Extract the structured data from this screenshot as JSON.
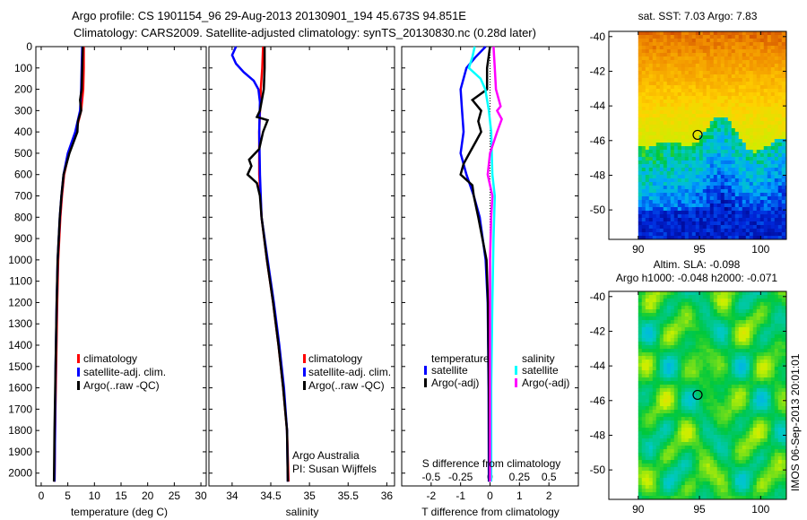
{
  "title": {
    "line1": "Argo profile: CS 1901154_96 29-Aug-2013 20130901_194 45.673S 94.851E",
    "line2": "Climatology: CARS2009. Satellite-adjusted climatology: synTS_20130830.nc (0.28d later)"
  },
  "colors": {
    "climatology": "#ff0000",
    "satellite": "#0000ff",
    "argo": "#000000",
    "sal_satellite": "#00ffff",
    "sal_argo": "#ff00ff"
  },
  "chart_data": [
    {
      "type": "line",
      "name": "temperature",
      "xlabel": "temperature (deg C)",
      "xlim": [
        -1,
        31
      ],
      "ylim": [
        2060,
        0
      ],
      "xticks": [
        0,
        5,
        10,
        15,
        20,
        25,
        30
      ],
      "yticks": [
        0,
        100,
        200,
        300,
        400,
        500,
        600,
        700,
        800,
        900,
        1000,
        1100,
        1200,
        1300,
        1400,
        1500,
        1600,
        1700,
        1800,
        1900,
        2000
      ],
      "legend": [
        "climatology",
        "satellite-adj. clim.",
        "Argo(..raw -QC)"
      ],
      "series": [
        {
          "name": "climatology",
          "color": "#ff0000",
          "depth": [
            0,
            100,
            200,
            300,
            400,
            500,
            600,
            700,
            800,
            1000,
            1200,
            1500,
            1800,
            2040
          ],
          "values": [
            8.0,
            8.0,
            7.9,
            7.5,
            6.5,
            5.2,
            4.3,
            3.9,
            3.6,
            3.2,
            3.0,
            2.8,
            2.6,
            2.5
          ]
        },
        {
          "name": "satellite-adj. clim.",
          "color": "#0000ff",
          "depth": [
            0,
            100,
            200,
            300,
            400,
            500,
            600,
            700,
            800,
            1000,
            1200,
            1500,
            1800,
            2040
          ],
          "values": [
            7.7,
            7.6,
            7.5,
            7.3,
            6.4,
            5.0,
            4.2,
            3.8,
            3.5,
            3.1,
            2.9,
            2.7,
            2.6,
            2.5
          ]
        },
        {
          "name": "Argo(..raw -QC)",
          "color": "#000000",
          "depth": [
            0,
            100,
            200,
            250,
            300,
            350,
            400,
            500,
            600,
            700,
            800,
            1000,
            1200,
            1500,
            1800,
            2040
          ],
          "values": [
            7.8,
            7.7,
            7.6,
            7.3,
            7.5,
            6.9,
            6.8,
            5.3,
            4.2,
            3.8,
            3.5,
            3.1,
            2.9,
            2.7,
            2.5,
            2.4
          ]
        }
      ]
    },
    {
      "type": "line",
      "name": "salinity",
      "xlabel": "salinity",
      "xlim": [
        33.7,
        36.1
      ],
      "ylim": [
        2060,
        0
      ],
      "xticks": [
        34,
        34.5,
        35,
        35.5,
        36
      ],
      "legend": [
        "climatology",
        "satellite-adj. clim.",
        "Argo(..raw -QC)"
      ],
      "annotation": [
        "Argo Australia",
        "PI: Susan Wijffels"
      ],
      "series": [
        {
          "name": "climatology",
          "color": "#ff0000",
          "depth": [
            0,
            100,
            200,
            400,
            600,
            800,
            1000,
            1200,
            1400,
            1600,
            1800,
            2040
          ],
          "values": [
            34.4,
            34.39,
            34.37,
            34.35,
            34.35,
            34.38,
            34.45,
            34.53,
            34.6,
            34.66,
            34.71,
            34.73
          ]
        },
        {
          "name": "satellite-adj. clim.",
          "color": "#0000ff",
          "depth": [
            0,
            40,
            80,
            120,
            160,
            200,
            260,
            400,
            600,
            800,
            1000,
            1200,
            1400,
            1600,
            1800,
            2040
          ],
          "values": [
            34.05,
            34.0,
            34.05,
            34.15,
            34.28,
            34.34,
            34.36,
            34.35,
            34.36,
            34.38,
            34.46,
            34.54,
            34.61,
            34.67,
            34.71,
            34.72
          ]
        },
        {
          "name": "Argo(..raw -QC)",
          "color": "#000000",
          "depth": [
            0,
            100,
            200,
            300,
            330,
            345,
            400,
            480,
            530,
            560,
            600,
            640,
            700,
            800,
            1000,
            1200,
            1400,
            1600,
            1800,
            2040
          ],
          "values": [
            34.42,
            34.42,
            34.41,
            34.36,
            34.32,
            34.46,
            34.4,
            34.35,
            34.22,
            34.25,
            34.2,
            34.32,
            34.36,
            34.38,
            34.45,
            34.53,
            34.6,
            34.66,
            34.71,
            34.72
          ]
        }
      ]
    },
    {
      "type": "line",
      "name": "difference",
      "xlabel": "T difference from climatology",
      "x2label": "S difference from climatology",
      "xlim": [
        -3,
        3
      ],
      "x2lim": [
        -0.75,
        0.75
      ],
      "ylim": [
        2060,
        0
      ],
      "xticks": [
        -2,
        -1,
        0,
        1,
        2
      ],
      "x2ticks": [
        -0.5,
        -0.25,
        0,
        0.25,
        0.5
      ],
      "legend": {
        "temperature_header": "temperature",
        "salinity_header": "salinity",
        "t_satellite": "satellite",
        "t_argo": "Argo(-adj)",
        "s_satellite": "satellite",
        "s_argo": "Argo(-adj)"
      },
      "series": [
        {
          "name": "T satellite",
          "axis": "T",
          "color": "#0000ff",
          "depth": [
            0,
            50,
            100,
            200,
            300,
            400,
            500,
            600,
            700,
            800,
            1000,
            1200,
            1600,
            2040
          ],
          "values": [
            -0.15,
            -0.5,
            -0.8,
            -1.0,
            -0.95,
            -0.9,
            -1.0,
            -0.8,
            -0.55,
            -0.35,
            -0.15,
            -0.08,
            -0.05,
            -0.04
          ]
        },
        {
          "name": "T Argo(-adj)",
          "axis": "T",
          "color": "#000000",
          "depth": [
            0,
            100,
            200,
            250,
            300,
            350,
            400,
            450,
            500,
            550,
            600,
            650,
            700,
            800,
            1000,
            1200,
            1600,
            2040
          ],
          "values": [
            0,
            -0.1,
            -0.1,
            -0.6,
            -0.3,
            -0.4,
            -0.3,
            -0.5,
            -0.7,
            -0.9,
            -1.0,
            -0.6,
            -0.55,
            -0.4,
            -0.12,
            -0.07,
            -0.04,
            -0.02
          ]
        },
        {
          "name": "S satellite",
          "axis": "S",
          "color": "#00ffff",
          "depth": [
            0,
            50,
            100,
            150,
            200,
            300,
            400,
            600,
            700,
            900,
            1200,
            1600,
            2040
          ],
          "values": [
            -0.13,
            -0.15,
            -0.18,
            -0.08,
            -0.04,
            -0.01,
            0.01,
            0.02,
            0.04,
            0.03,
            0.02,
            0.01,
            0.01
          ]
        },
        {
          "name": "S Argo(-adj)",
          "axis": "S",
          "color": "#ff00ff",
          "depth": [
            0,
            100,
            200,
            280,
            300,
            340,
            400,
            500,
            600,
            700,
            800,
            1000,
            1400,
            2040
          ],
          "values": [
            0.03,
            0.04,
            0.05,
            0.09,
            0.06,
            0.1,
            0.06,
            0.0,
            -0.02,
            0.02,
            0.01,
            0.0,
            0.0,
            0.0
          ]
        }
      ]
    },
    {
      "type": "heatmap",
      "name": "sst-map",
      "title": "sat. SST: 7.03 Argo: 7.83",
      "xlim": [
        87.6,
        102.1
      ],
      "ylim": [
        -51.7,
        -39.7
      ],
      "xticks": [
        90,
        95,
        100
      ],
      "yticks": [
        -40,
        -42,
        -44,
        -46,
        -48,
        -50
      ],
      "marker": {
        "lon": 94.85,
        "lat": -45.67
      }
    },
    {
      "type": "heatmap",
      "name": "sla-map",
      "title_line1": "Altim. SLA: -0.098",
      "title_line2": "Argo h1000: -0.048 h2000: -0.071",
      "xlim": [
        87.6,
        102.1
      ],
      "ylim": [
        -51.7,
        -39.7
      ],
      "xticks": [
        90,
        95,
        100
      ],
      "yticks": [
        -40,
        -42,
        -44,
        -46,
        -48,
        -50
      ],
      "marker": {
        "lon": 94.85,
        "lat": -45.67
      }
    }
  ],
  "stamp": "IMOS 06-Sep-2013 20:01:01"
}
